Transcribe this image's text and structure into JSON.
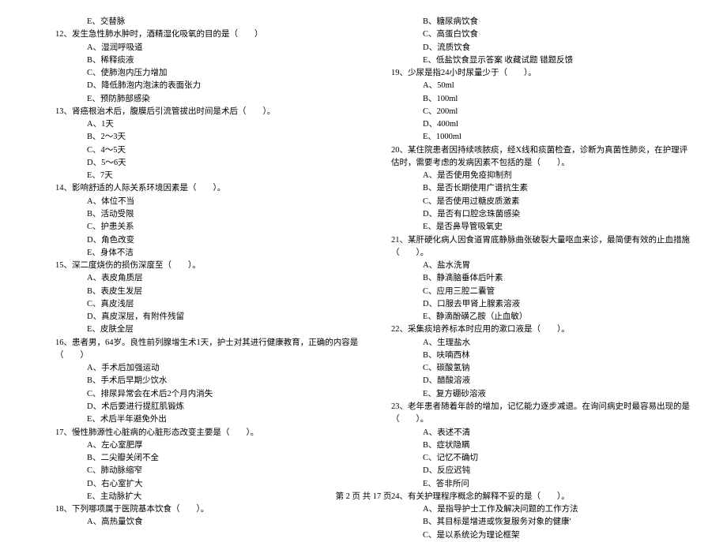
{
  "footer": "第 2 页 共 17 页",
  "left": {
    "q11_e": "E、交替脉",
    "q12": {
      "t": "12、发生急性肺水肿时，酒精湿化吸氧的目的是（　　）",
      "a": "A、湿润呼吸道",
      "b": "B、稀释痰液",
      "c": "C、使肺泡内压力增加",
      "d": "D、降低肺泡内泡沫的表面张力",
      "e": "E、预防肺部感染"
    },
    "q13": {
      "t": "13、肾癌根治术后，腹膜后引流管拔出时间是术后（　　）。",
      "a": "A、1天",
      "b": "B、2～3天",
      "c": "C、4～5天",
      "d": "D、5～6天",
      "e": "E、7天"
    },
    "q14": {
      "t": "14、影响舒适的人际关系环境因素是（　　）。",
      "a": "A、体位不当",
      "b": "B、活动受限",
      "c": "C、护患关系",
      "d": "D、角色改变",
      "e": "E、身体不洁"
    },
    "q15": {
      "t": "15、深二度烧伤的损伤深度至（　　）。",
      "a": "A、表皮角质层",
      "b": "B、表皮生发层",
      "c": "C、真皮浅层",
      "d": "D、真皮深层，有附件残留",
      "e": "E、皮肤全层"
    },
    "q16": {
      "t": "16、患者男，64岁。良性前列腺增生术1天，护士对其进行健康教育，正确的内容是（　　）",
      "a": "A、手术后加强运动",
      "b": "B、手术后早期少饮水",
      "c": "C、排尿异常会在术后2个月内消失",
      "d": "D、术后要进行提肛肌锻炼",
      "e": "E、术后半年避免外出"
    },
    "q17": {
      "t": "17、慢性肺源性心脏病的心脏形态改变主要是（　　）。",
      "a": "A、左心室肥厚",
      "b": "B、二尖瓣关闭不全",
      "c": "C、肺动脉缩窄",
      "d": "D、右心室扩大",
      "e": "E、主动脉扩大"
    },
    "q18": {
      "t": "18、下列哪项属于医院基本饮食（　　）。",
      "a": "A、高热量饮食"
    }
  },
  "right": {
    "q18_b": "B、糖尿病饮食",
    "q18_c": "C、高蛋白饮食",
    "q18_d": "D、流质饮食",
    "q18_e": "E、低盐饮食显示答案 收藏试题 错题反馈",
    "q19": {
      "t": "19、少尿是指24小时尿量少于（　　）。",
      "a": "A、50ml",
      "b": "B、100ml",
      "c": "C、200ml",
      "d": "D、400ml",
      "e": "E、1000ml"
    },
    "q20": {
      "t": "20、某住院患者因持续咳脓痰，经X线和痰菌检查，诊断为真菌性肺炎，在护理评估时，需要考虑的发病因素不包括的是（　　）。",
      "a": "A、是否使用免疫抑制剂",
      "b": "B、是否长期使用广谱抗生素",
      "c": "C、是否使用过糖皮质激素",
      "d": "D、是否有口腔念珠菌感染",
      "e": "E、是否鼻导管吸氧史"
    },
    "q21": {
      "t": "21、某肝硬化病人因食道胃底静脉曲张破裂大量呕血来诊，最简便有效的止血措施（　　）。",
      "a": "A、盐水洗胃",
      "b": "B、静滴脑垂体后叶素",
      "c": "C、应用三腔二囊管",
      "d": "D、口服去甲肾上腺素溶液",
      "e": "E、静滴酚磺乙胺（止血敏）"
    },
    "q22": {
      "t": "22、采集痰培养标本时应用的漱口液是（　　）。",
      "a": "A、生理盐水",
      "b": "B、呋喃西林",
      "c": "C、碳酸氢钠",
      "d": "D、醋酸溶液",
      "e": "E、复方硼砂溶液"
    },
    "q23": {
      "t": "23、老年患者随着年龄的增加，记忆能力逐步减退。在询问病史时最容易出现的是（　　）。",
      "a": "A、表述不清",
      "b": "B、症状隐瞒",
      "c": "C、记忆不确切",
      "d": "D、反应迟钝",
      "e": "E、答非所问"
    },
    "q24": {
      "t": "24、有关护理程序概念的解释不妥的是（　　）。",
      "a": "A、是指导护士工作及解决问题的工作方法",
      "b": "B、其目标是增进或恢复服务对象的健康'",
      "c": "C、是以系统论为理论框架"
    }
  }
}
